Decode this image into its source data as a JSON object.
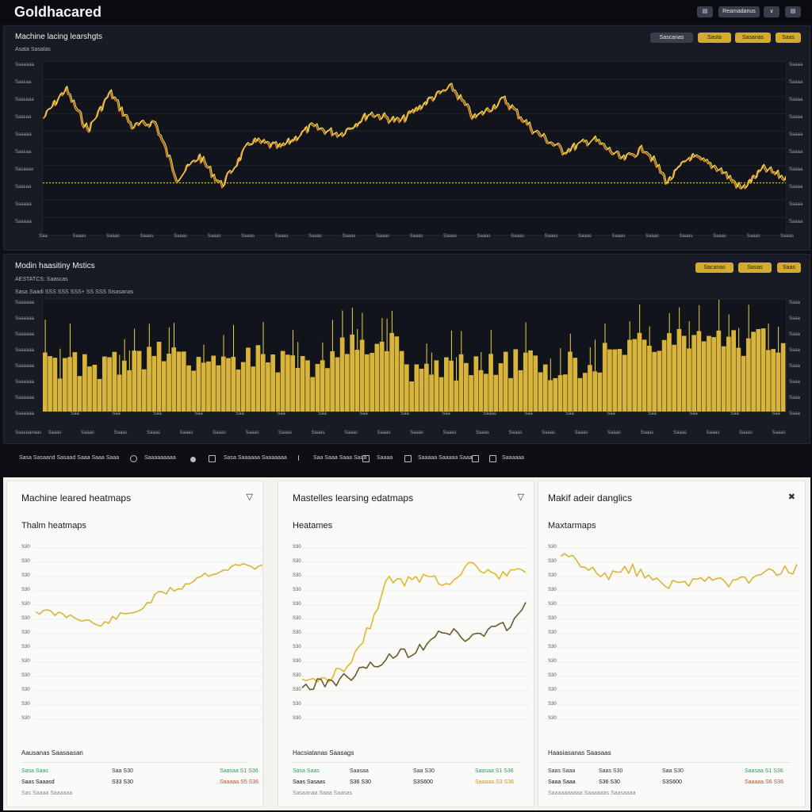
{
  "app": {
    "title": "Goldhacared"
  },
  "topbar": {
    "btn1": "▤",
    "btn2": "Reamadanus",
    "btn3": "∨",
    "btn4": "▤"
  },
  "panel1": {
    "title": "Machine lacing learshgts",
    "subtitle": "Asata Sasalas",
    "pills": [
      "Sascanas",
      "Sasta",
      "Sasanas",
      "Saas"
    ],
    "yticks_left": [
      "Saaaaaa",
      "Saasaa",
      "Saasaaa",
      "Saasaa",
      "Saaaaa",
      "Saasaa",
      "Sasaaas",
      "Saasaa",
      "Saaaaa",
      "Saaaaa"
    ],
    "yticks_right": [
      "Saaaa",
      "Saaaa",
      "Saaaa",
      "Saaaa",
      "Saaaa",
      "Saaaa",
      "Saaaa",
      "Saaaa",
      "Saaaa",
      "Saaaa"
    ],
    "xticks": [
      "Saa",
      "Saaas",
      "Saaas",
      "Saaas",
      "Saaas",
      "Saaas",
      "Saaas",
      "Saaas",
      "Saaas",
      "Saaas",
      "Saaas",
      "Saaas",
      "Saaas",
      "Saaas",
      "Saaas",
      "Saaas",
      "Saaas",
      "Saaas",
      "Saaas",
      "Saaas",
      "Saaas",
      "Saaas",
      "Saaas"
    ]
  },
  "panel2": {
    "title": "Modin haasitiny Mstics",
    "subtitle": "AESTATCS: Saascas",
    "subtitle2": "Sasa Saadi SSS SSS SSS+ SS SSS Sisasanas",
    "pills": [
      "Sacanas",
      "Sasas",
      "Saas"
    ],
    "yticks_left": [
      "Saaaaaa",
      "Saaaaaa",
      "Saaaaaa",
      "Saaaaaa",
      "Saaaaaa",
      "Saaaaaa",
      "Saaaaaa",
      "Saaaaaa"
    ],
    "yticks_right": [
      "Saaa",
      "Saaa",
      "Saaa",
      "Saaa",
      "Saaa",
      "Saaa",
      "Saaa",
      "Saaa"
    ],
    "xticks": [
      "Saa",
      "Saa",
      "Saa",
      "Saa",
      "Saa",
      "Saa",
      "Saa",
      "Saa",
      "Saa",
      "Saa",
      "Saaas",
      "Saa",
      "Saa",
      "Saa",
      "Saa",
      "Saa",
      "Saa",
      "Saa"
    ],
    "footer_ticks": [
      "Saasaanaas",
      "Saaas",
      "Saaas",
      "Saaas",
      "Saaas",
      "Saaas",
      "Saaas",
      "Saaas",
      "Saaas",
      "Saaas",
      "Saaas",
      "Saaas",
      "Saaas",
      "Saaas",
      "Saaas",
      "Saaas",
      "Saaas",
      "Saaas",
      "Saaas",
      "Saaas",
      "Saaas",
      "Saaas",
      "Saaas",
      "Saaas"
    ]
  },
  "strip": {
    "items": [
      "Sasa Sasaand Sasaad Saaa Saaa Saaa",
      "Saaaaaaaaa",
      "Sasa Saaaaaa Saaaaaaa",
      "Saa Saaa Saaa Saaa",
      "Saaaa",
      "Saaaaa Saaaaa Saaa",
      "Saaaaaa"
    ]
  },
  "cards": [
    {
      "title": "Machine leared heatmaps",
      "subtitle": "Thalm heatmaps",
      "icon": "▽",
      "yticks": [
        "S30",
        "S30",
        "S30",
        "S30",
        "S30",
        "S30",
        "S30",
        "S30",
        "S30",
        "S30",
        "S30",
        "S30",
        "S30"
      ],
      "summary_title": "Aausanas Saasaasan",
      "rows": [
        {
          "c1": "Sasa Saas",
          "c2": "Saa S30",
          "c3": "Saasaa  S1 S36"
        },
        {
          "c1": "Saas Saaasd",
          "c2": "S33 S30",
          "c3": "Saaaaa  S5 S36"
        }
      ],
      "footer": "Sas Saaaa Saaaaaa"
    },
    {
      "title": "Mastelles learsing edatmaps",
      "subtitle": "Heatames",
      "icon": "▽",
      "yticks": [
        "S30",
        "S30",
        "S30",
        "S30",
        "S30",
        "S30",
        "S30",
        "S30",
        "S30",
        "S30",
        "S30",
        "S30",
        "S30"
      ],
      "summary_title": "Hacsiatanas Saasags",
      "rows": [
        {
          "c1": "Sasa Saas",
          "c2": "Saasaa",
          "c3": "Saa S30",
          "c4": "Saasaa  S1 S36"
        },
        {
          "c1": "Saas Sasaas",
          "c2": "S36 S30",
          "c3": "S3S600",
          "c4": "Saaaaa  S3 S36"
        }
      ],
      "footer": "Sasaanaa Saaa Saasas"
    },
    {
      "title": "Makif adeir danglics",
      "subtitle": "Maxtarmaps",
      "icon": "✖",
      "yticks": [
        "S30",
        "S30",
        "S30",
        "S30",
        "S30",
        "S30",
        "S30",
        "S30",
        "S30",
        "S30",
        "S30",
        "S30",
        "S30"
      ],
      "summary_title": "Haasiasanas Saasaas",
      "rows": [
        {
          "c1": "Saas Saaa",
          "c2": "Saas S30",
          "c3": "Saa S30",
          "c4": "Saasaa  S1 S36"
        },
        {
          "c1": "Saaa Saaa",
          "c2": "S36 S30",
          "c3": "S3S600",
          "c4": "Saaaaa  S6 S36"
        }
      ],
      "footer": "Saaaaaaaaaa Saaaaaas Saasaaaa"
    }
  ],
  "colors": {
    "gold": "#d8b43a",
    "bright_gold": "#f2e35a",
    "orange": "#e08a2c",
    "dark_line": "#6b5a2a",
    "green": "#2aa06a",
    "red": "#d0473b"
  }
}
